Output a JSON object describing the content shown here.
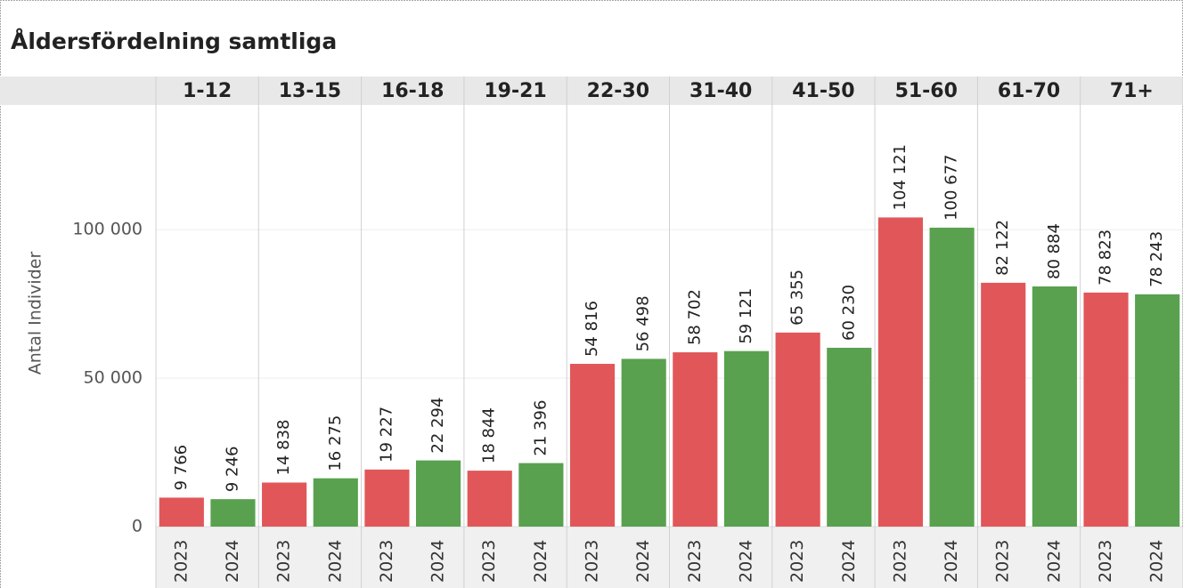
{
  "chart_data": {
    "type": "bar",
    "title": "Åldersfördelning samtliga",
    "y_label": "Antal Individer",
    "categories": [
      "1-12",
      "13-15",
      "16-18",
      "19-21",
      "22-30",
      "31-40",
      "41-50",
      "51-60",
      "61-70",
      "71+"
    ],
    "series": [
      {
        "name": "2023",
        "color": "#e15759",
        "values": [
          9766,
          14838,
          19227,
          18844,
          54816,
          58702,
          65355,
          104121,
          82122,
          78823
        ],
        "value_labels": [
          "9 766",
          "14 838",
          "19 227",
          "18 844",
          "54 816",
          "58 702",
          "65 355",
          "104 121",
          "82 122",
          "78 823"
        ]
      },
      {
        "name": "2024",
        "color": "#59a14f",
        "values": [
          9246,
          16275,
          22294,
          21396,
          56498,
          59121,
          60230,
          100677,
          80884,
          78243
        ],
        "value_labels": [
          "9 246",
          "16 275",
          "22 294",
          "21 396",
          "56 498",
          "59 121",
          "60 230",
          "100 677",
          "80 884",
          "78 243"
        ]
      }
    ],
    "ylim": [
      0,
      142000
    ],
    "yticks": [
      0,
      {
        "value": 50000,
        "label": "50 000"
      },
      {
        "value": 100000,
        "label": "100 000"
      }
    ],
    "grid": true
  }
}
